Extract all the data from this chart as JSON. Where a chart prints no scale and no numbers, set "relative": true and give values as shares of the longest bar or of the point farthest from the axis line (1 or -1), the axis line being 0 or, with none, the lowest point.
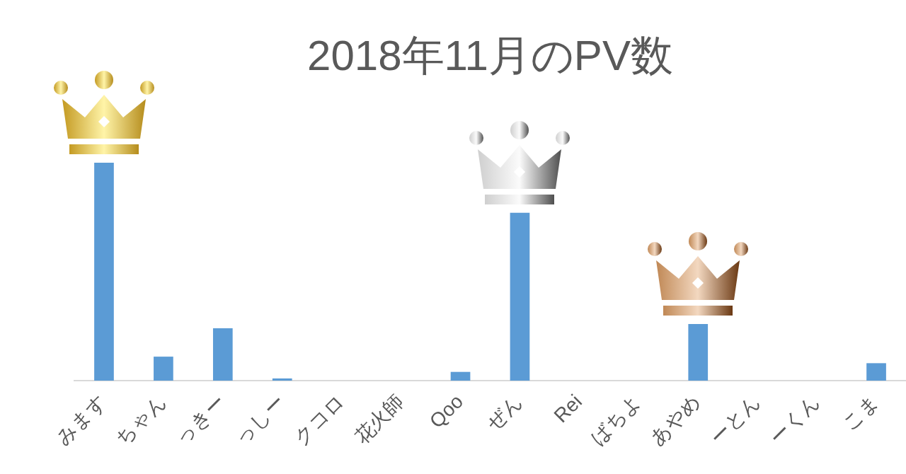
{
  "chart_data": {
    "type": "bar",
    "title": "2018年11月のPV数",
    "categories": [
      "みます",
      "ちゃん",
      "っきー",
      "っしー",
      "クコロ",
      "花火師",
      "Qoo",
      "ぜん",
      "Rei",
      "ばちよ",
      "あやめ",
      "ーとん",
      "ーくん",
      "こま"
    ],
    "values": [
      1,
      0.11,
      0.24,
      0.01,
      0,
      0,
      0.04,
      0.77,
      0,
      0,
      0.26,
      0,
      0,
      0.08
    ],
    "color": "#5b9bd5",
    "relative": true
  }
}
